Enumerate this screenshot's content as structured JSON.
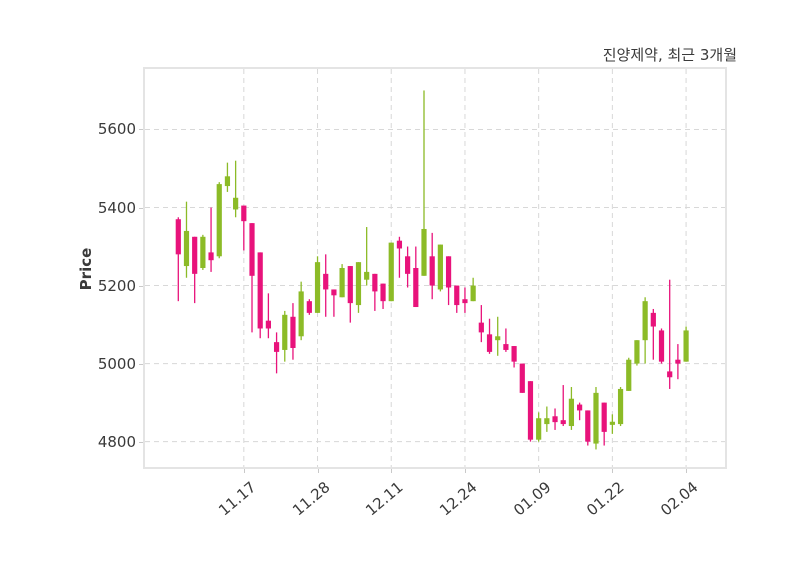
{
  "title": "진양제약, 최근 3개월",
  "colors": {
    "up": "#8cbb27",
    "down": "#e8137b",
    "grid": "#d8d8d8",
    "frame": "#e4e4e4",
    "text": "#3a3a3a",
    "background": "#ffffff"
  },
  "chart_data": {
    "type": "candlestick",
    "title": "진양제약, 최근 3개월",
    "xlabel": "",
    "ylabel": "Price",
    "grid": "dashed",
    "legend": "none",
    "ylim": [
      4735,
      5755
    ],
    "y_ticks": [
      4800,
      5000,
      5200,
      5400,
      5600
    ],
    "x_tick_labels": [
      "11.17",
      "11.28",
      "12.11",
      "12.24",
      "01.09",
      "01.22",
      "02.04"
    ],
    "x_tick_indices": [
      8,
      17,
      26,
      35,
      44,
      53,
      62
    ],
    "columns": [
      "open",
      "high",
      "low",
      "close"
    ],
    "candles_ohlc": [
      [
        5370,
        5375,
        5160,
        5280
      ],
      [
        5250,
        5415,
        5220,
        5340
      ],
      [
        5325,
        5325,
        5155,
        5230
      ],
      [
        5245,
        5330,
        5240,
        5325
      ],
      [
        5285,
        5400,
        5235,
        5265
      ],
      [
        5275,
        5465,
        5270,
        5460
      ],
      [
        5455,
        5515,
        5440,
        5480
      ],
      [
        5395,
        5520,
        5375,
        5425
      ],
      [
        5405,
        5405,
        5290,
        5365
      ],
      [
        5360,
        5360,
        5080,
        5225
      ],
      [
        5285,
        5285,
        5065,
        5090
      ],
      [
        5110,
        5180,
        5065,
        5090
      ],
      [
        5055,
        5080,
        4975,
        5030
      ],
      [
        5035,
        5135,
        5005,
        5125
      ],
      [
        5120,
        5155,
        5010,
        5040
      ],
      [
        5070,
        5210,
        5060,
        5185
      ],
      [
        5160,
        5165,
        5125,
        5130
      ],
      [
        5130,
        5275,
        5130,
        5260
      ],
      [
        5230,
        5280,
        5120,
        5190
      ],
      [
        5190,
        5190,
        5120,
        5175
      ],
      [
        5170,
        5255,
        5170,
        5245
      ],
      [
        5250,
        5250,
        5105,
        5155
      ],
      [
        5150,
        5260,
        5130,
        5260
      ],
      [
        5215,
        5350,
        5200,
        5235
      ],
      [
        5230,
        5230,
        5135,
        5185
      ],
      [
        5205,
        5205,
        5140,
        5160
      ],
      [
        5160,
        5310,
        5160,
        5310
      ],
      [
        5315,
        5325,
        5220,
        5295
      ],
      [
        5275,
        5300,
        5195,
        5230
      ],
      [
        5245,
        5300,
        5145,
        5145
      ],
      [
        5225,
        5700,
        5225,
        5345
      ],
      [
        5275,
        5335,
        5165,
        5200
      ],
      [
        5190,
        5305,
        5185,
        5305
      ],
      [
        5275,
        5275,
        5150,
        5195
      ],
      [
        5200,
        5200,
        5130,
        5150
      ],
      [
        5165,
        5195,
        5130,
        5155
      ],
      [
        5160,
        5220,
        5160,
        5200
      ],
      [
        5105,
        5150,
        5055,
        5080
      ],
      [
        5075,
        5115,
        5025,
        5030
      ],
      [
        5060,
        5120,
        5020,
        5070
      ],
      [
        5050,
        5090,
        5030,
        5035
      ],
      [
        5045,
        5045,
        4990,
        5005
      ],
      [
        5000,
        5000,
        4925,
        4925
      ],
      [
        4955,
        4955,
        4800,
        4805
      ],
      [
        4805,
        4875,
        4800,
        4860
      ],
      [
        4845,
        4890,
        4825,
        4860
      ],
      [
        4865,
        4885,
        4830,
        4850
      ],
      [
        4855,
        4945,
        4840,
        4845
      ],
      [
        4840,
        4940,
        4830,
        4910
      ],
      [
        4895,
        4900,
        4855,
        4880
      ],
      [
        4880,
        4880,
        4790,
        4800
      ],
      [
        4795,
        4940,
        4780,
        4925
      ],
      [
        4900,
        4900,
        4790,
        4825
      ],
      [
        4843,
        4870,
        4820,
        4851
      ],
      [
        4845,
        4940,
        4840,
        4935
      ],
      [
        4930,
        5015,
        4930,
        5010
      ],
      [
        5000,
        5060,
        4995,
        5060
      ],
      [
        5060,
        5170,
        5000,
        5160
      ],
      [
        5130,
        5140,
        5010,
        5095
      ],
      [
        5085,
        5090,
        5000,
        5005
      ],
      [
        4980,
        5215,
        4935,
        4965
      ],
      [
        5010,
        5050,
        4960,
        5000
      ],
      [
        5005,
        5095,
        5005,
        5085
      ]
    ]
  }
}
